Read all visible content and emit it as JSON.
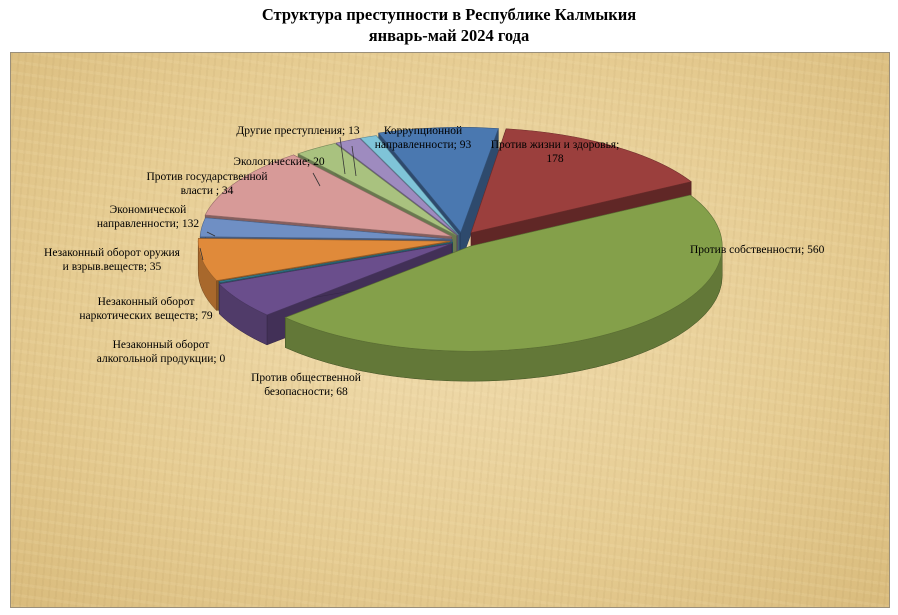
{
  "title": {
    "line1": "Структура преступности в  Республике Калмыкия",
    "line2": "январь-май 2024 года"
  },
  "chart_data": {
    "type": "pie",
    "title": "Структура преступности в  Республике Калмыкия январь-май 2024 года",
    "style": "3d-exploded",
    "slices": [
      {
        "category": "Против жизни и здоровья",
        "value": 178,
        "color": "#9b3f3d",
        "label_lines": [
          "Против  жизни и здоровья;",
          "178"
        ]
      },
      {
        "category": "Против собственности",
        "value": 560,
        "color": "#84a04a",
        "label_lines": [
          "Против  собственности; 560"
        ]
      },
      {
        "category": "Против общественной безопасности",
        "value": 68,
        "color": "#6a4e8c",
        "label_lines": [
          "Против  общественной",
          "безопасности; 68"
        ]
      },
      {
        "category": "Незаконный оборот алкогольной продукции",
        "value": 0,
        "color": "#3c8aa0",
        "label_lines": [
          "Незаконный оборот",
          "алкогольной продукции; 0"
        ]
      },
      {
        "category": "Незаконный оборот наркотических веществ",
        "value": 79,
        "color": "#e08a3a",
        "label_lines": [
          "Незаконный оборот",
          "наркотических  веществ; 79"
        ]
      },
      {
        "category": "Незаконный оборот оружия и взрыв.веществ",
        "value": 35,
        "color": "#6f8fc4",
        "label_lines": [
          "Незаконный оборот оружия",
          "и взрыв.веществ;  35"
        ]
      },
      {
        "category": "Экономической направленности",
        "value": 132,
        "color": "#d79a98",
        "label_lines": [
          "Экономической",
          "направленности; 132"
        ]
      },
      {
        "category": "Против государственной власти",
        "value": 34,
        "color": "#a9c27f",
        "label_lines": [
          "Против  государственной",
          "власти ; 34"
        ]
      },
      {
        "category": "Экологические",
        "value": 20,
        "color": "#9e8bbf",
        "label_lines": [
          "Экологические; 20"
        ]
      },
      {
        "category": "Другие преступления",
        "value": 13,
        "color": "#7fc4d8",
        "label_lines": [
          "Другие преступления;  13"
        ]
      },
      {
        "category": "Коррупционной направленности",
        "value": 93,
        "color": "#4a78b0",
        "label_lines": [
          "Коррупционной",
          "направленности; 93"
        ]
      }
    ]
  }
}
